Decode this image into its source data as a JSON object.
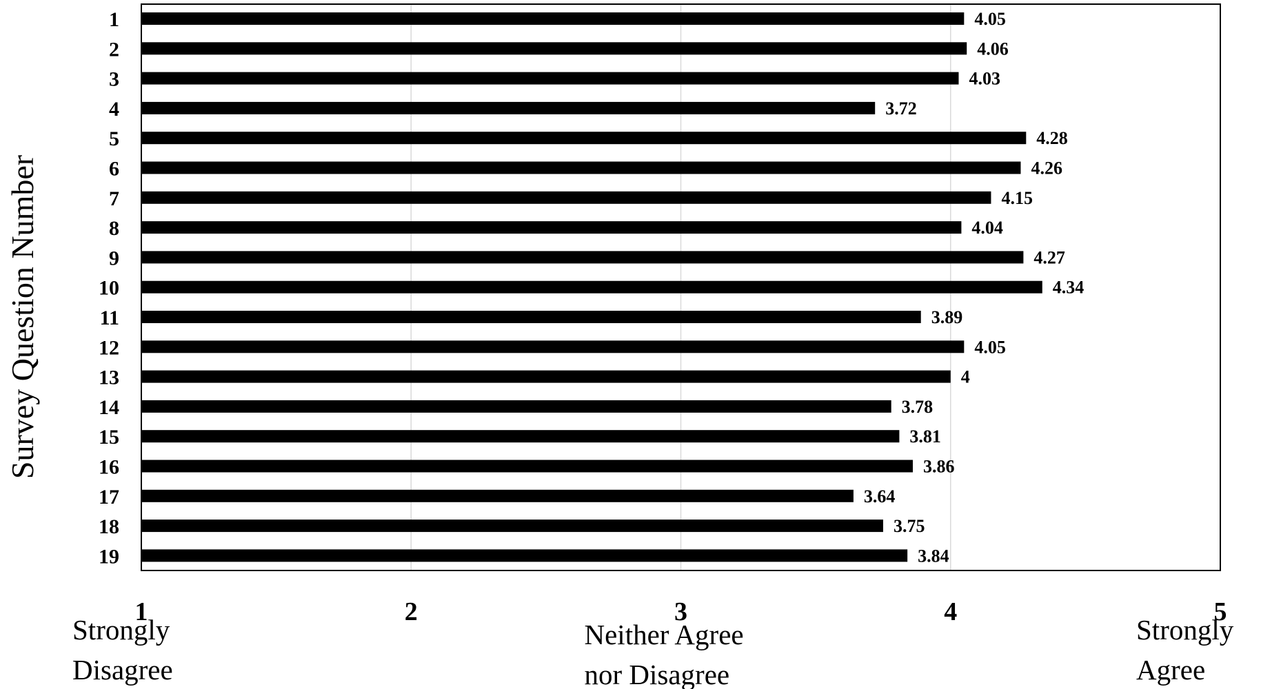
{
  "chart_data": {
    "type": "bar",
    "orientation": "horizontal",
    "categories": [
      "1",
      "2",
      "3",
      "4",
      "5",
      "6",
      "7",
      "8",
      "9",
      "10",
      "11",
      "12",
      "13",
      "14",
      "15",
      "16",
      "17",
      "18",
      "19"
    ],
    "values": [
      4.05,
      4.06,
      4.03,
      3.72,
      4.28,
      4.26,
      4.15,
      4.04,
      4.27,
      4.34,
      3.89,
      4.05,
      4,
      3.78,
      3.81,
      3.86,
      3.64,
      3.75,
      3.84
    ],
    "value_labels": [
      "4.05",
      "4.06",
      "4.03",
      "3.72",
      "4.28",
      "4.26",
      "4.15",
      "4.04",
      "4.27",
      "4.34",
      "3.89",
      "4.05",
      "4",
      "3.78",
      "3.81",
      "3.86",
      "3.64",
      "3.75",
      "3.84"
    ],
    "title": "",
    "xlabel": "",
    "ylabel": "Survey Question Number",
    "xlim": [
      1,
      5
    ],
    "x_ticks": [
      "1",
      "2",
      "3",
      "4",
      "5"
    ],
    "anchor_labels": [
      {
        "tick": 1,
        "lines": [
          "Strongly",
          "Disagree"
        ]
      },
      {
        "tick": 3,
        "lines": [
          "Neither Agree",
          "nor Disagree"
        ]
      },
      {
        "tick": 5,
        "lines": [
          "Strongly",
          "Agree"
        ]
      }
    ],
    "grid": true,
    "legend": "none",
    "bar_color": "#000000",
    "grid_color": "#d9d9d9"
  }
}
